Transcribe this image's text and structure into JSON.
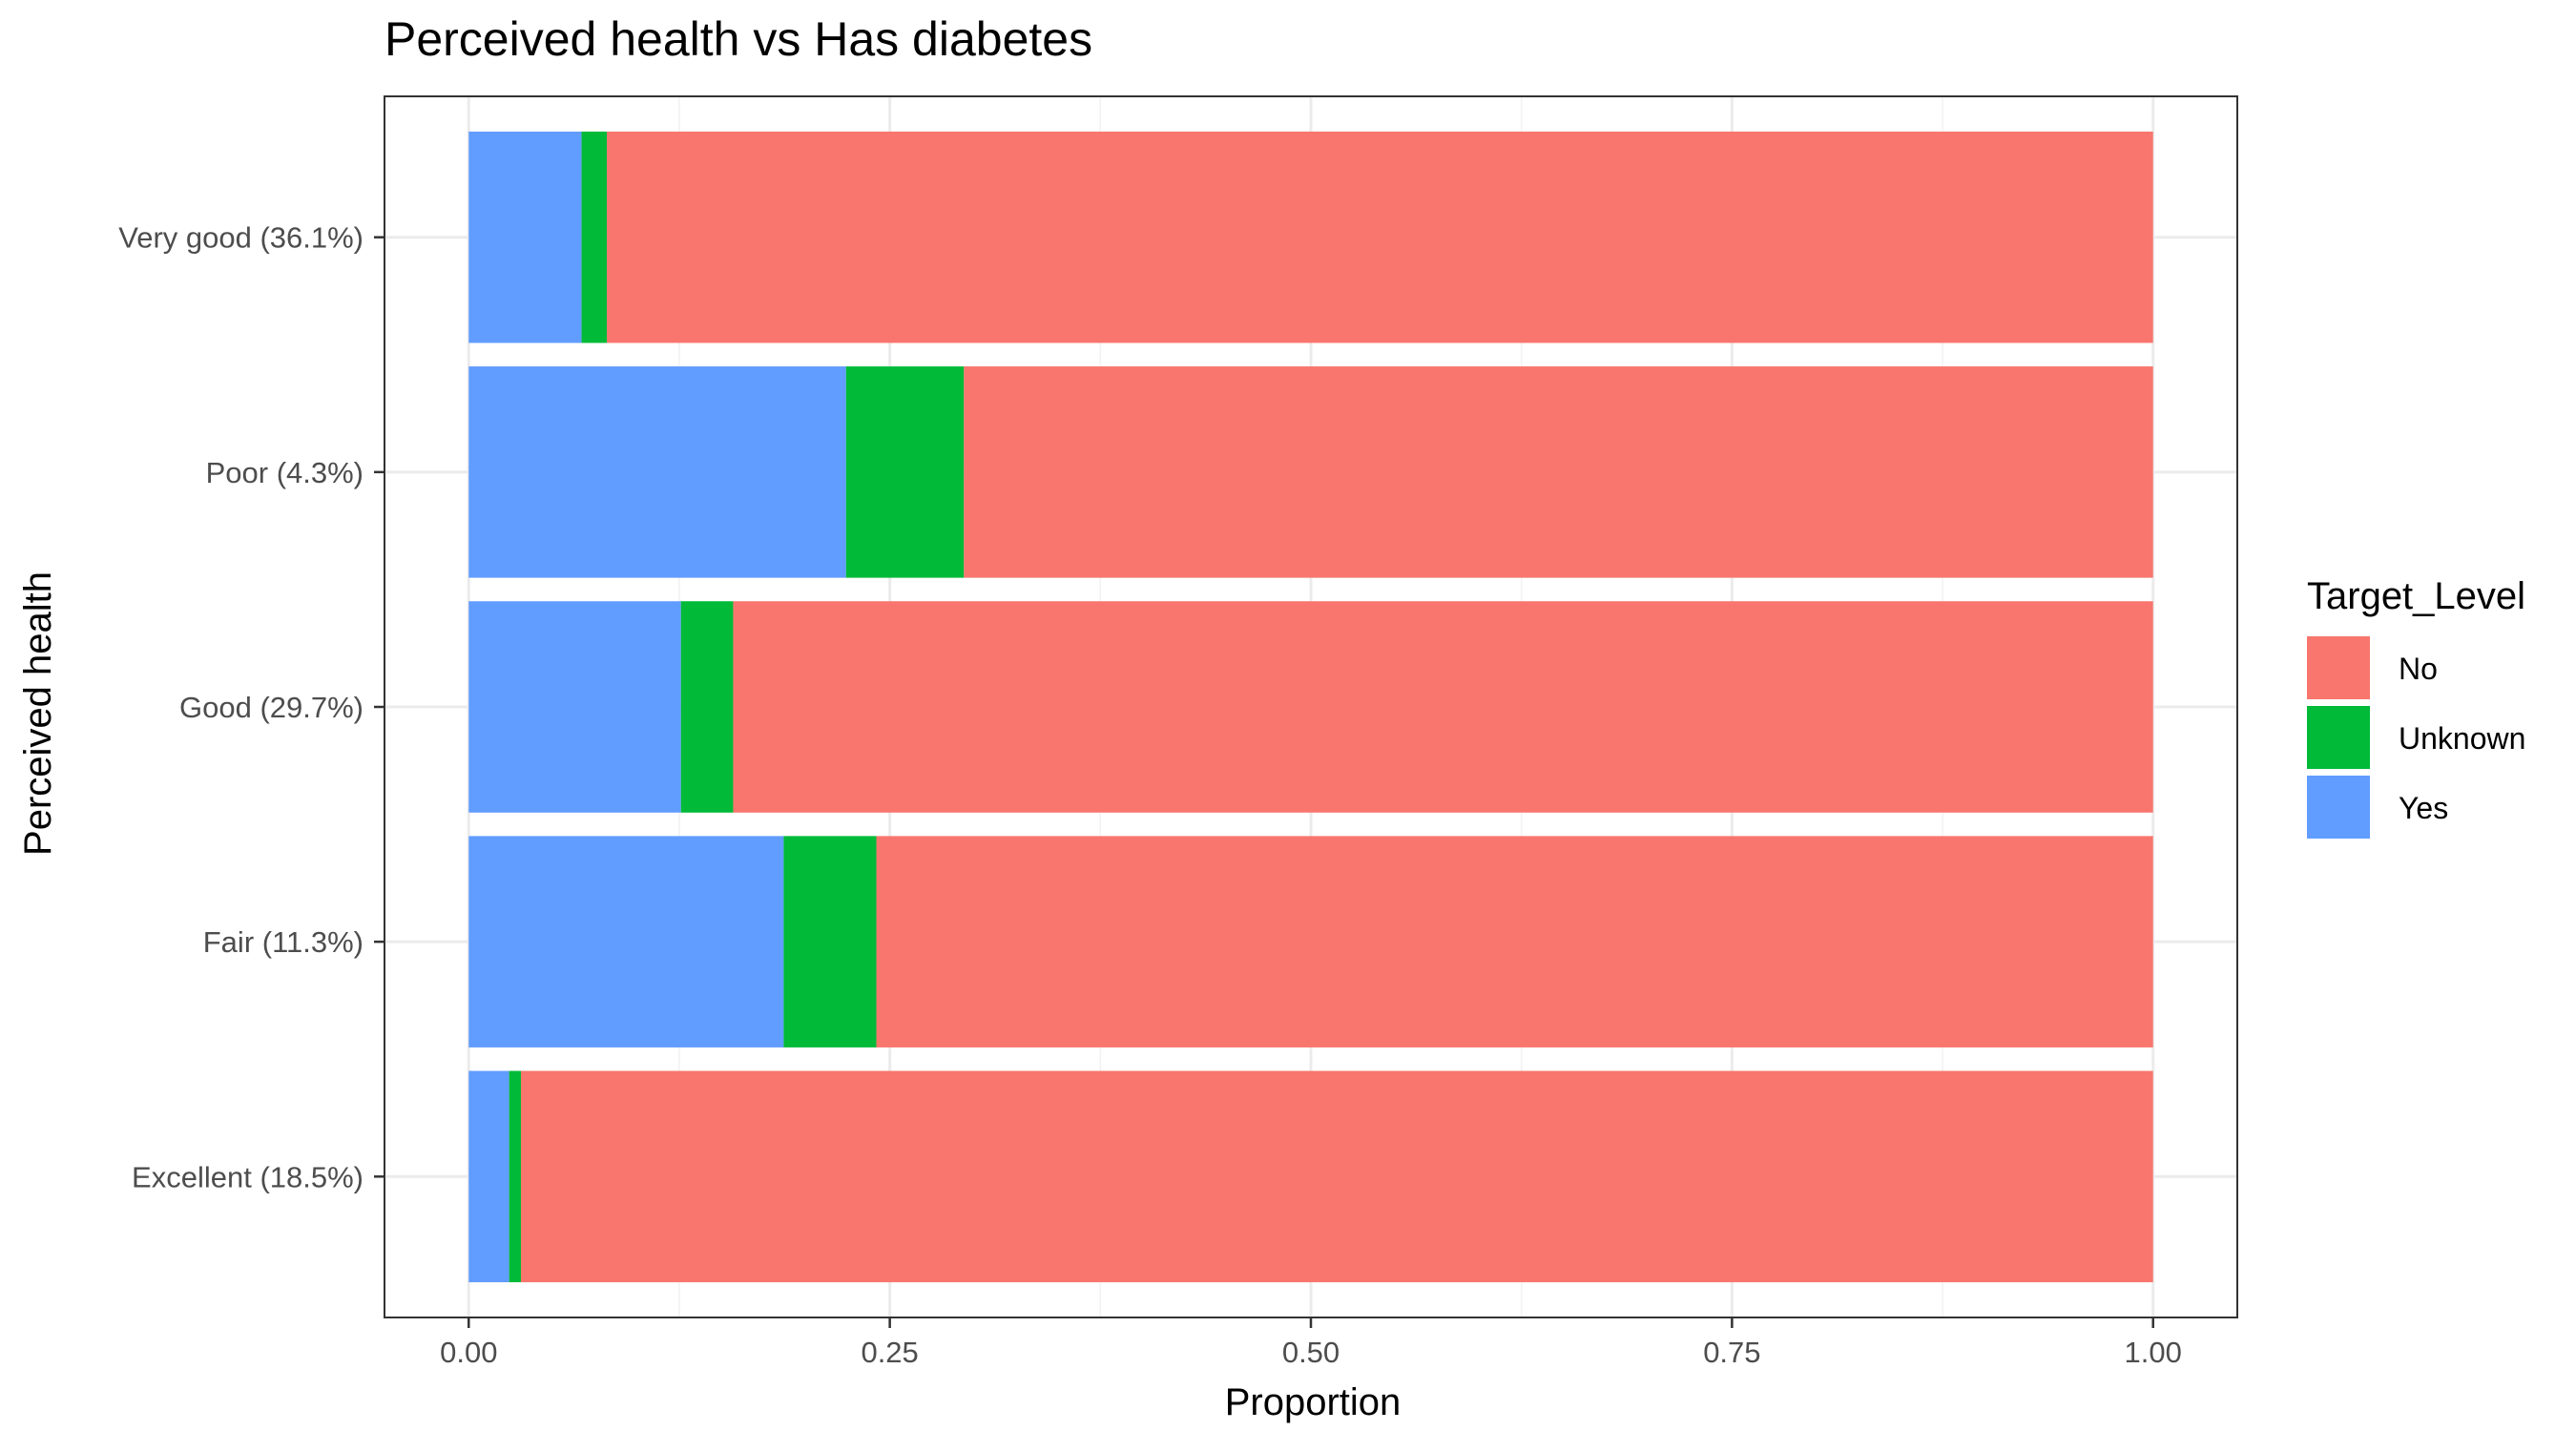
{
  "chart_data": {
    "type": "bar",
    "orientation": "horizontal",
    "stacked": true,
    "title": "Perceived health  vs Has diabetes",
    "xlabel": "Proportion",
    "ylabel": "Perceived health",
    "xlim": [
      0,
      1
    ],
    "x_ticks": [
      "0.00",
      "0.25",
      "0.50",
      "0.75",
      "1.00"
    ],
    "x_tick_values": [
      0,
      0.25,
      0.5,
      0.75,
      1
    ],
    "categories": [
      "Excellent (18.5%)",
      "Fair (11.3%)",
      "Good (29.7%)",
      "Poor (4.3%)",
      "Very good (36.1%)"
    ],
    "series": [
      {
        "name": "Yes",
        "color": "#619CFF",
        "values": [
          0.024,
          0.187,
          0.126,
          0.224,
          0.067
        ]
      },
      {
        "name": "Unknown",
        "color": "#00BA38",
        "values": [
          0.007,
          0.055,
          0.031,
          0.07,
          0.015
        ]
      },
      {
        "name": "No",
        "color": "#F8766D",
        "values": [
          0.969,
          0.758,
          0.843,
          0.706,
          0.918
        ]
      }
    ],
    "grid": true,
    "legend": {
      "title": "Target_Level",
      "position": "right",
      "items": [
        {
          "label": "No",
          "color": "#F8766D"
        },
        {
          "label": "Unknown",
          "color": "#00BA38"
        },
        {
          "label": "Yes",
          "color": "#619CFF"
        }
      ]
    }
  }
}
